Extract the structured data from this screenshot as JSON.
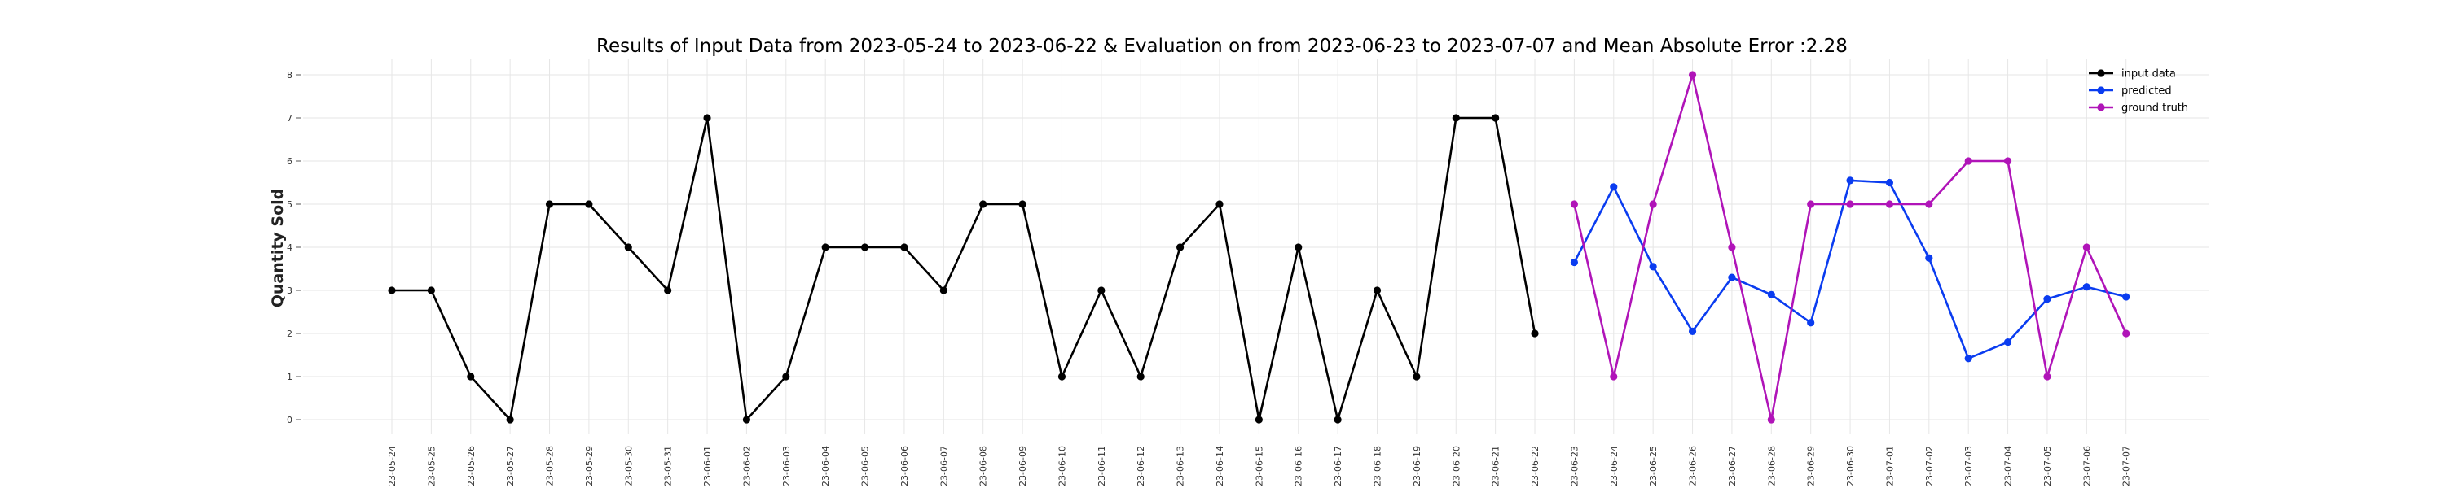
{
  "chart_data": {
    "type": "line",
    "title": "Results of Input Data from 2023-05-24 to 2023-06-22 & Evaluation on from 2023-06-23 to 2023-07-07 and Mean Absolute Error  :2.28",
    "xlabel": "",
    "ylabel": "Quantity Sold",
    "ylim": [
      0,
      8
    ],
    "yticks": [
      0,
      1,
      2,
      3,
      4,
      5,
      6,
      7,
      8
    ],
    "grid": true,
    "legend_position": "top-right",
    "x": [
      "2023-05-24",
      "2023-05-25",
      "2023-05-26",
      "2023-05-27",
      "2023-05-28",
      "2023-05-29",
      "2023-05-30",
      "2023-05-31",
      "2023-06-01",
      "2023-06-02",
      "2023-06-03",
      "2023-06-04",
      "2023-06-05",
      "2023-06-06",
      "2023-06-07",
      "2023-06-08",
      "2023-06-09",
      "2023-06-10",
      "2023-06-11",
      "2023-06-12",
      "2023-06-13",
      "2023-06-14",
      "2023-06-15",
      "2023-06-16",
      "2023-06-17",
      "2023-06-18",
      "2023-06-19",
      "2023-06-20",
      "2023-06-21",
      "2023-06-22",
      "2023-06-23",
      "2023-06-24",
      "2023-06-25",
      "2023-06-26",
      "2023-06-27",
      "2023-06-28",
      "2023-06-29",
      "2023-06-30",
      "2023-07-01",
      "2023-07-02",
      "2023-07-03",
      "2023-07-04",
      "2023-07-05",
      "2023-07-06",
      "2023-07-07"
    ],
    "series": [
      {
        "name": "input data",
        "color": "#000000",
        "x": [
          "2023-05-24",
          "2023-05-25",
          "2023-05-26",
          "2023-05-27",
          "2023-05-28",
          "2023-05-29",
          "2023-05-30",
          "2023-05-31",
          "2023-06-01",
          "2023-06-02",
          "2023-06-03",
          "2023-06-04",
          "2023-06-05",
          "2023-06-06",
          "2023-06-07",
          "2023-06-08",
          "2023-06-09",
          "2023-06-10",
          "2023-06-11",
          "2023-06-12",
          "2023-06-13",
          "2023-06-14",
          "2023-06-15",
          "2023-06-16",
          "2023-06-17",
          "2023-06-18",
          "2023-06-19",
          "2023-06-20",
          "2023-06-21",
          "2023-06-22"
        ],
        "values": [
          3,
          3,
          1,
          0,
          5,
          5,
          4,
          3,
          7,
          0,
          1,
          4,
          4,
          4,
          3,
          5,
          5,
          1,
          3,
          1,
          4,
          5,
          0,
          4,
          0,
          3,
          1,
          7,
          7,
          2
        ]
      },
      {
        "name": "predicted",
        "color": "#0a3cf0",
        "x": [
          "2023-06-23",
          "2023-06-24",
          "2023-06-25",
          "2023-06-26",
          "2023-06-27",
          "2023-06-28",
          "2023-06-29",
          "2023-06-30",
          "2023-07-01",
          "2023-07-02",
          "2023-07-03",
          "2023-07-04",
          "2023-07-05",
          "2023-07-06",
          "2023-07-07"
        ],
        "values": [
          3.65,
          5.4,
          3.55,
          2.05,
          3.3,
          2.9,
          2.25,
          5.55,
          5.5,
          3.75,
          1.42,
          1.8,
          2.8,
          3.08,
          2.85
        ]
      },
      {
        "name": "ground truth",
        "color": "#b014b8",
        "x": [
          "2023-06-23",
          "2023-06-24",
          "2023-06-25",
          "2023-06-26",
          "2023-06-27",
          "2023-06-28",
          "2023-06-29",
          "2023-06-30",
          "2023-07-01",
          "2023-07-02",
          "2023-07-03",
          "2023-07-04",
          "2023-07-05",
          "2023-07-06",
          "2023-07-07"
        ],
        "values": [
          5,
          1,
          5,
          8,
          4,
          0,
          5,
          5,
          5,
          5,
          6,
          6,
          1,
          4,
          2
        ]
      }
    ]
  }
}
